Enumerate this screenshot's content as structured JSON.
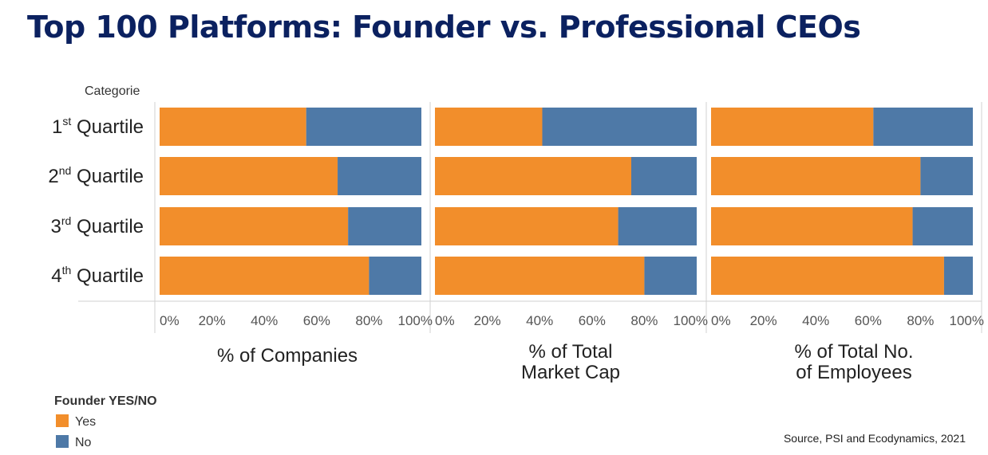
{
  "title": "Top 100 Platforms: Founder vs. Professional CEOs",
  "category_header": "Categorie",
  "legend": {
    "title": "Founder YES/NO",
    "items": [
      {
        "label": "Yes",
        "color": "#f28e2b"
      },
      {
        "label": "No",
        "color": "#4e79a7"
      }
    ]
  },
  "source": "Source, PSI and Ecodynamics, 2021",
  "chart_data": {
    "type": "bar",
    "stacked": true,
    "orientation": "horizontal",
    "categories": [
      {
        "ordinal": "1",
        "suffix": "st",
        "label": "Quartile"
      },
      {
        "ordinal": "2",
        "suffix": "nd",
        "label": "Quartile"
      },
      {
        "ordinal": "3",
        "suffix": "rd",
        "label": "Quartile"
      },
      {
        "ordinal": "4",
        "suffix": "th",
        "label": "Quartile"
      }
    ],
    "xlim": [
      0,
      100
    ],
    "ticks": [
      "0%",
      "20%",
      "40%",
      "60%",
      "80%",
      "100%"
    ],
    "panels": [
      {
        "title": "% of Companies",
        "series": [
          {
            "name": "Yes",
            "values": [
              56,
              68,
              72,
              80
            ]
          },
          {
            "name": "No",
            "values": [
              44,
              32,
              28,
              20
            ]
          }
        ]
      },
      {
        "title": "% of Total Market Cap",
        "series": [
          {
            "name": "Yes",
            "values": [
              41,
              75,
              70,
              80
            ]
          },
          {
            "name": "No",
            "values": [
              59,
              25,
              30,
              20
            ]
          }
        ]
      },
      {
        "title": "% of Total No. of Employees",
        "series": [
          {
            "name": "Yes",
            "values": [
              62,
              80,
              77,
              89
            ]
          },
          {
            "name": "No",
            "values": [
              38,
              20,
              23,
              11
            ]
          }
        ]
      }
    ]
  }
}
